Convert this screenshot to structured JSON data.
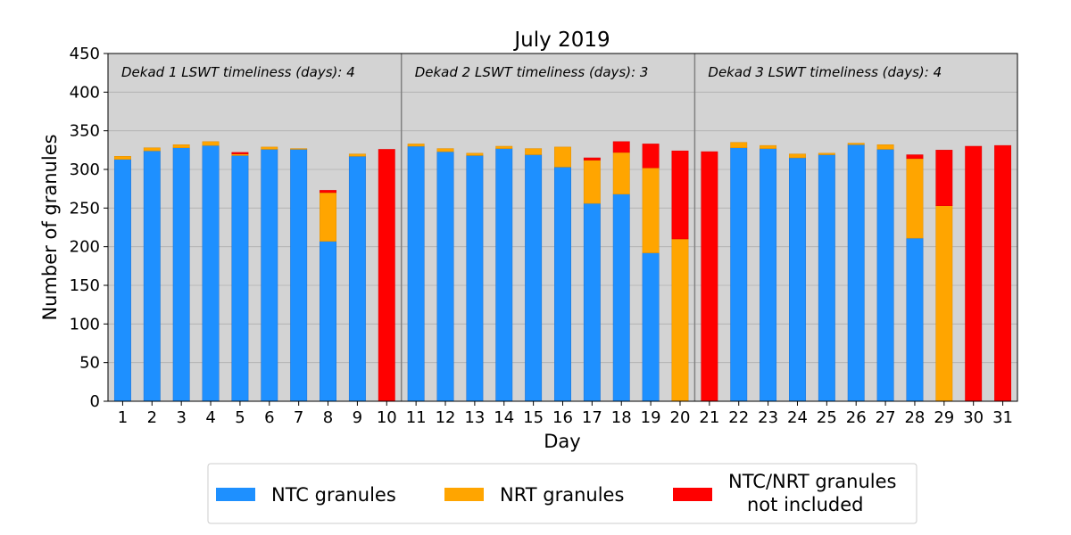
{
  "chart_data": {
    "type": "bar",
    "stacked": true,
    "title": "July 2019",
    "xlabel": "Day",
    "ylabel": "Number of granules",
    "ylim": [
      0,
      450
    ],
    "yticks": [
      0,
      50,
      100,
      150,
      200,
      250,
      300,
      350,
      400,
      450
    ],
    "grid": true,
    "legend_position": "bottom-center",
    "categories": [
      "1",
      "2",
      "3",
      "4",
      "5",
      "6",
      "7",
      "8",
      "9",
      "10",
      "11",
      "12",
      "13",
      "14",
      "15",
      "16",
      "17",
      "18",
      "19",
      "20",
      "21",
      "22",
      "23",
      "24",
      "25",
      "26",
      "27",
      "28",
      "29",
      "30",
      "31"
    ],
    "series": [
      {
        "name": "NTC granules",
        "color": "#1e90ff",
        "values": [
          313,
          324,
          328,
          331,
          318,
          326,
          326,
          207,
          317,
          0,
          330,
          323,
          318,
          327,
          319,
          303,
          256,
          268,
          192,
          0,
          0,
          328,
          327,
          315,
          319,
          332,
          326,
          211,
          0,
          0,
          0
        ]
      },
      {
        "name": "NRT granules",
        "color": "#ffa500",
        "values": [
          4,
          4,
          4,
          5,
          2,
          3,
          1,
          63,
          3,
          0,
          3,
          4,
          3,
          3,
          8,
          26,
          56,
          54,
          110,
          210,
          0,
          7,
          4,
          5,
          2,
          2,
          6,
          103,
          253,
          0,
          0
        ]
      },
      {
        "name": "NTC/NRT granules\nnot included",
        "color": "#ff0000",
        "values": [
          0,
          0,
          0,
          0,
          2,
          0,
          0,
          3,
          0,
          326,
          0,
          0,
          0,
          0,
          0,
          0,
          3,
          14,
          31,
          114,
          323,
          0,
          0,
          0,
          0,
          0,
          0,
          5,
          72,
          330,
          331
        ]
      }
    ],
    "annotations": [
      {
        "text": "Dekad 1 LSWT timeliness (days): 4"
      },
      {
        "text": "Dekad 2 LSWT timeliness (days): 3"
      },
      {
        "text": "Dekad 3 LSWT timeliness (days): 4"
      }
    ],
    "dekad_boundaries_after_day": [
      10,
      20
    ],
    "background_color": "#d3d3d3"
  }
}
